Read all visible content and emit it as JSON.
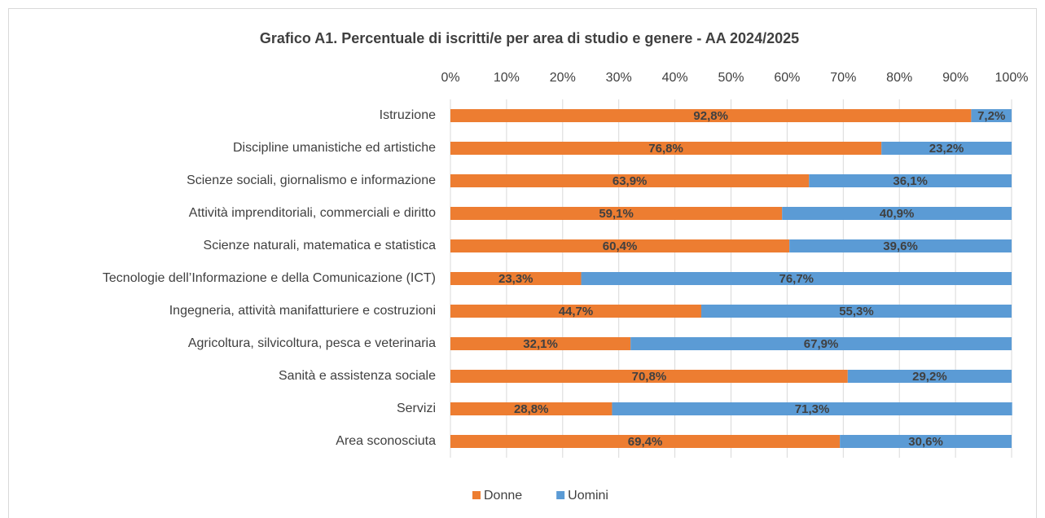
{
  "chart_data": {
    "type": "bar",
    "orientation": "horizontal",
    "stacked": true,
    "title": "Grafico A1. Percentuale di iscritti/e per area di studio e genere - AA  2024/2025",
    "categories": [
      "Istruzione",
      "Discipline umanistiche ed artistiche",
      "Scienze sociali, giornalismo e informazione",
      "Attività imprenditoriali, commerciali e diritto",
      "Scienze naturali, matematica e statistica",
      "Tecnologie dell’Informazione e della Comunicazione (ICT)",
      "Ingegneria, attività manifatturiere e costruzioni",
      "Agricoltura, silvicoltura, pesca e veterinaria",
      "Sanità e assistenza sociale",
      "Servizi",
      "Area sconosciuta"
    ],
    "series": [
      {
        "name": "Donne",
        "color": "#ed7d31",
        "values": [
          92.8,
          76.8,
          63.9,
          59.1,
          60.4,
          23.3,
          44.7,
          32.1,
          70.8,
          28.8,
          69.4
        ],
        "value_labels": [
          "92,8%",
          "76,8%",
          "63,9%",
          "59,1%",
          "60,4%",
          "23,3%",
          "44,7%",
          "32,1%",
          "70,8%",
          "28,8%",
          "69,4%"
        ]
      },
      {
        "name": "Uomini",
        "color": "#5b9bd5",
        "values": [
          7.2,
          23.2,
          36.1,
          40.9,
          39.6,
          76.7,
          55.3,
          67.9,
          29.2,
          71.3,
          30.6
        ],
        "value_labels": [
          "7,2%",
          "23,2%",
          "36,1%",
          "40,9%",
          "39,6%",
          "76,7%",
          "55,3%",
          "67,9%",
          "29,2%",
          "71,3%",
          "30,6%"
        ]
      }
    ],
    "xlim": [
      0,
      100
    ],
    "xticks": [
      {
        "value": 0,
        "label": "0%"
      },
      {
        "value": 10,
        "label": "10%"
      },
      {
        "value": 20,
        "label": "20%"
      },
      {
        "value": 30,
        "label": "30%"
      },
      {
        "value": 40,
        "label": "40%"
      },
      {
        "value": 50,
        "label": "50%"
      },
      {
        "value": 60,
        "label": "60%"
      },
      {
        "value": 70,
        "label": "70%"
      },
      {
        "value": 80,
        "label": "80%"
      },
      {
        "value": 90,
        "label": "90%"
      },
      {
        "value": 100,
        "label": "100%"
      }
    ],
    "grid": true,
    "legend": "bottom"
  }
}
